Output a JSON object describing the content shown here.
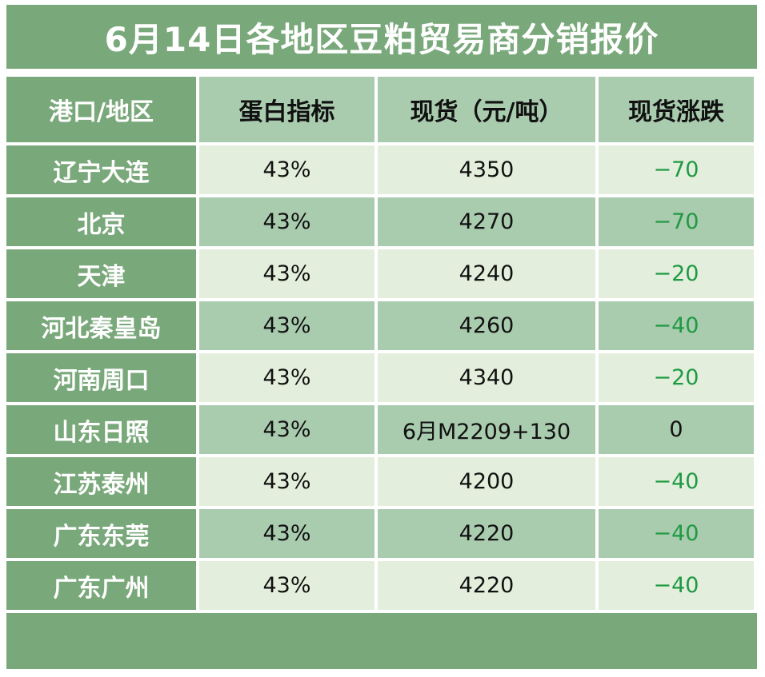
{
  "title": "6月14日各地区豆粕贸易商分销报价",
  "headers": {
    "region": "港口/地区",
    "protein": "蛋白指标",
    "spot": "现货（元/吨）",
    "change": "现货涨跌"
  },
  "rows": [
    {
      "region": "辽宁大连",
      "protein": "43%",
      "spot": "4350",
      "change": "−70"
    },
    {
      "region": "北京",
      "protein": "43%",
      "spot": "4270",
      "change": "−70"
    },
    {
      "region": "天津",
      "protein": "43%",
      "spot": "4240",
      "change": "−20"
    },
    {
      "region": "河北秦皇岛",
      "protein": "43%",
      "spot": "4260",
      "change": "−40"
    },
    {
      "region": "河南周口",
      "protein": "43%",
      "spot": "4340",
      "change": "−20"
    },
    {
      "region": "山东日照",
      "protein": "43%",
      "spot": "6月M2209+130",
      "change": "0"
    },
    {
      "region": "江苏泰州",
      "protein": "43%",
      "spot": "4200",
      "change": "−40"
    },
    {
      "region": "广东东莞",
      "protein": "43%",
      "spot": "4220",
      "change": "−40"
    },
    {
      "region": "广东广州",
      "protein": "43%",
      "spot": "4220",
      "change": "−40"
    }
  ],
  "colors": {
    "header_green": "#79a87a",
    "mid_green": "#a9cbae",
    "light_green": "#e3efdc",
    "down_text": "#1f9a43"
  }
}
